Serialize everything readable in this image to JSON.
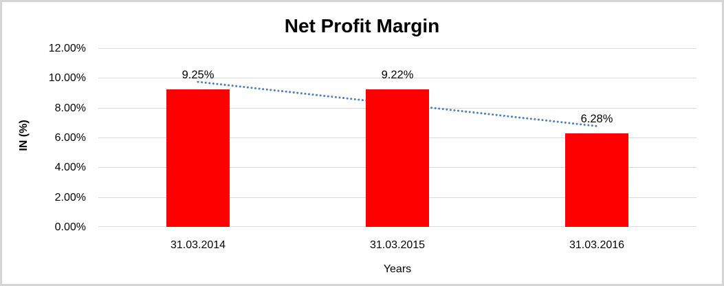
{
  "chart_data": {
    "type": "bar",
    "title": "Net Profit Margin",
    "categories": [
      "31.03.2014",
      "31.03.2015",
      "31.03.2016"
    ],
    "values": [
      9.25,
      9.22,
      6.28
    ],
    "data_labels": [
      "9.25%",
      "9.22%",
      "6.28%"
    ],
    "xlabel": "Years",
    "ylabel": "IN (%)",
    "ylim": [
      0,
      12
    ],
    "yticks": [
      {
        "value": 12,
        "label": "12.00%"
      },
      {
        "value": 10,
        "label": "10.00%"
      },
      {
        "value": 8,
        "label": "8.00%"
      },
      {
        "value": 6,
        "label": "6.00%"
      },
      {
        "value": 4,
        "label": "4.00%"
      },
      {
        "value": 2,
        "label": "2.00%"
      },
      {
        "value": 0,
        "label": "0.00%"
      }
    ],
    "grid": true,
    "legend": "none",
    "trendline": {
      "type": "linear",
      "line_style": "dotted",
      "color": "#4F81BD"
    },
    "colors": {
      "bar": "#FF0000",
      "gridline": "#D9D9D9",
      "axis_line": "#D9D9D9",
      "text": "#000000",
      "trendline": "#4F81BD",
      "chart_border": "#D5D5D5"
    }
  }
}
